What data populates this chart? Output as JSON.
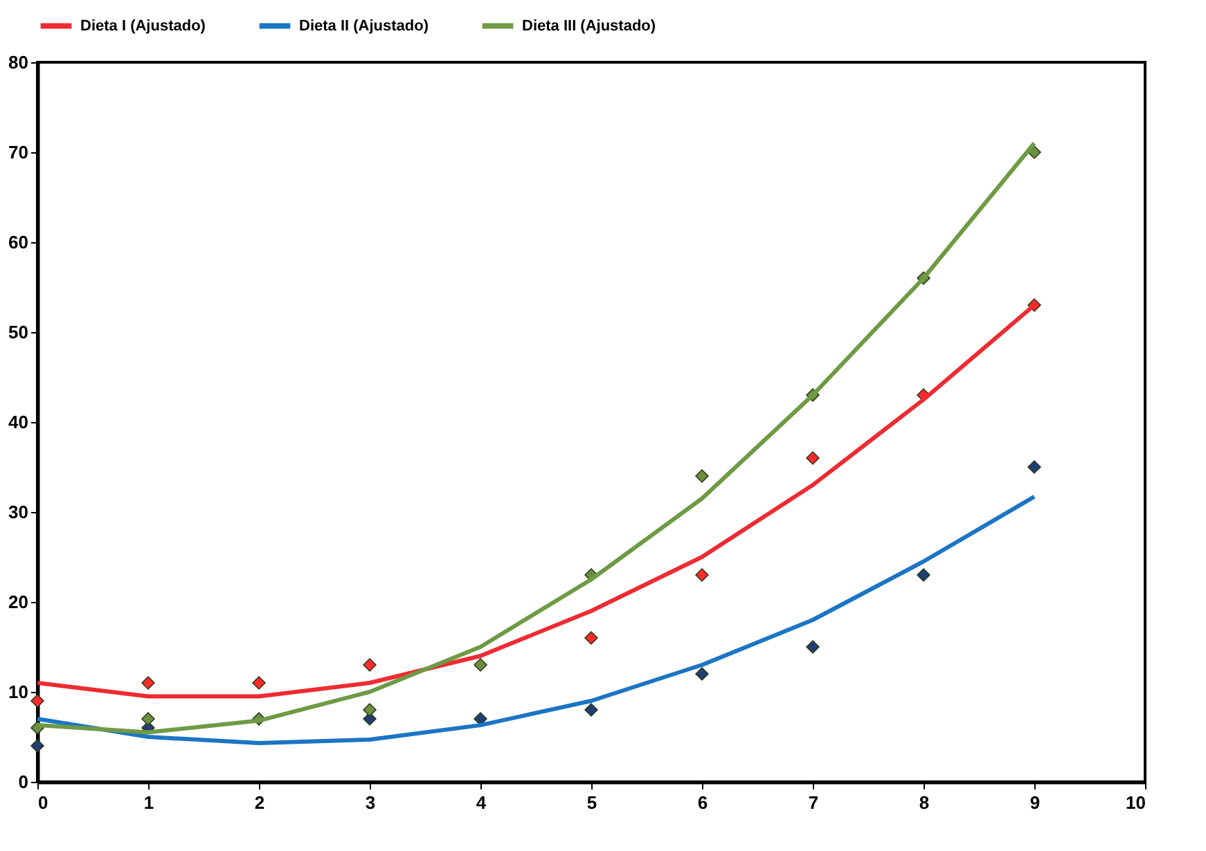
{
  "chart_data": {
    "type": "line",
    "x": [
      0,
      1,
      2,
      3,
      4,
      5,
      6,
      7,
      8,
      9
    ],
    "xlim": [
      0,
      10
    ],
    "xticks": [
      0,
      1,
      2,
      3,
      4,
      5,
      6,
      7,
      8,
      9,
      10
    ],
    "ylim": [
      0,
      80
    ],
    "yticks": [
      0,
      10,
      20,
      30,
      40,
      50,
      60,
      70,
      80
    ],
    "grid": false,
    "legend": "top",
    "series": [
      {
        "type": "scatter",
        "marker": "diamond",
        "color": "#ff2a2a",
        "values": [
          9,
          11,
          11,
          13,
          null,
          16,
          23,
          36,
          43,
          53
        ]
      },
      {
        "type": "scatter",
        "marker": "diamond",
        "color": "#1f3f73",
        "values": [
          4,
          6,
          null,
          7,
          7,
          8,
          12,
          15,
          23,
          35
        ]
      },
      {
        "type": "scatter",
        "marker": "diamond",
        "color": "#6b8f3e",
        "values": [
          6,
          7,
          7,
          8,
          13,
          23,
          34,
          43,
          56,
          70
        ]
      },
      {
        "marker": "none",
        "line_style": "solid",
        "name": "Dieta I (Ajustado)",
        "color": "#ee2b33",
        "values": [
          11,
          9.5,
          9.5,
          11,
          14,
          19,
          25,
          33,
          42.5,
          53
        ]
      },
      {
        "marker": "none",
        "line_style": "solid",
        "name": "Dieta II (Ajustado)",
        "color": "#1b75c4",
        "values": [
          7,
          5,
          4.3,
          4.7,
          6.3,
          9,
          13,
          18,
          24.5,
          31.7
        ]
      },
      {
        "marker": "none",
        "line_style": "solid",
        "name": "Dieta III (Ajustado)",
        "color": "#6e9a44",
        "values": [
          6.3,
          5.5,
          6.8,
          10,
          15,
          22.5,
          31.5,
          43,
          56,
          71
        ]
      }
    ]
  }
}
